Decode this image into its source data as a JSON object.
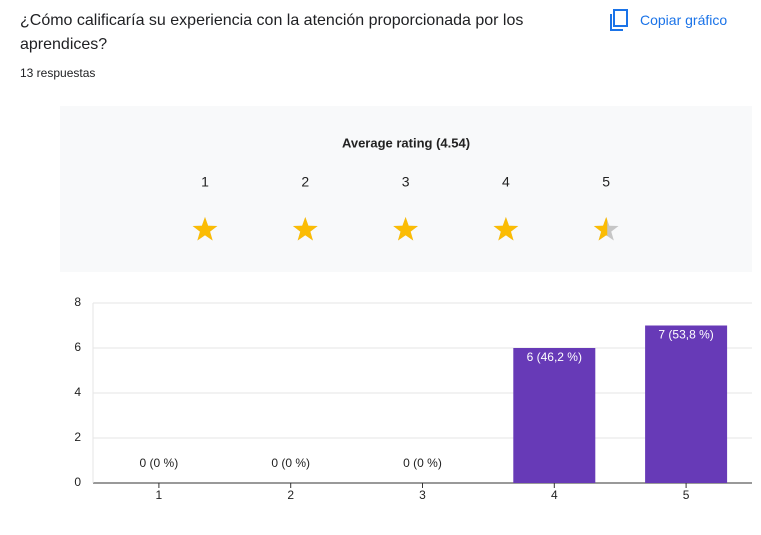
{
  "title": "¿Cómo calificaría su experiencia con la atención proporcionada por los aprendices?",
  "copy_button": "Copiar gráfico",
  "responses": "13 respuestas",
  "rating": {
    "label": "Average rating (4.54)",
    "average": 4.54,
    "levels": [
      "1",
      "2",
      "3",
      "4",
      "5"
    ]
  },
  "chart_data": {
    "type": "bar",
    "categories": [
      "1",
      "2",
      "3",
      "4",
      "5"
    ],
    "values": [
      0,
      0,
      0,
      6,
      7
    ],
    "value_labels": [
      "0 (0 %)",
      "0 (0 %)",
      "0 (0 %)",
      "6 (46,2 %)",
      "7 (53,8 %)"
    ],
    "color": "#673ab7",
    "ylim": [
      0,
      8
    ],
    "yticks": [
      0,
      2,
      4,
      6,
      8
    ],
    "grid": true
  }
}
